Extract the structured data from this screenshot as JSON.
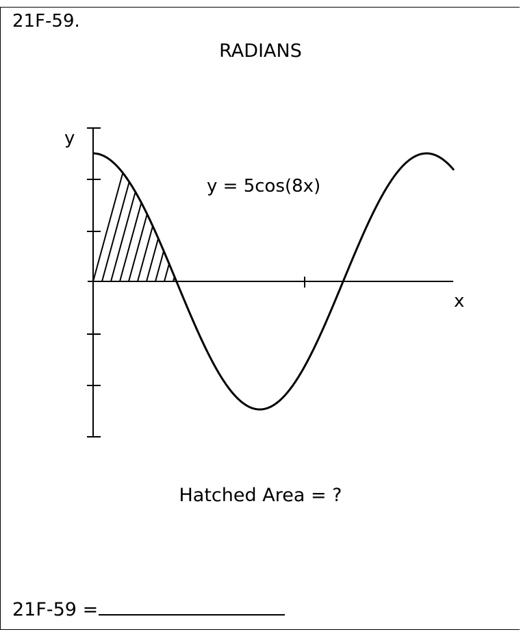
{
  "problem": {
    "id_label": "21F-59.",
    "mode": "RADIANS",
    "question": "Hatched Area = ?",
    "answer_label": "21F-59 ="
  },
  "diagram": {
    "equation": "y = 5cos(8x)",
    "x_axis_label": "x",
    "y_axis_label": "y"
  },
  "chart_data": {
    "type": "line",
    "title": "",
    "function": "y = 5cos(8x)",
    "amplitude": 5,
    "angular_frequency": 8,
    "units": "radians",
    "x_range": [
      0,
      0.85
    ],
    "ylim": [
      -5,
      5
    ],
    "xlabel": "x",
    "ylabel": "y",
    "hatched_region": {
      "from_x": 0,
      "to_x": 0.19635,
      "description_text": "Hatched Area = ?"
    }
  }
}
